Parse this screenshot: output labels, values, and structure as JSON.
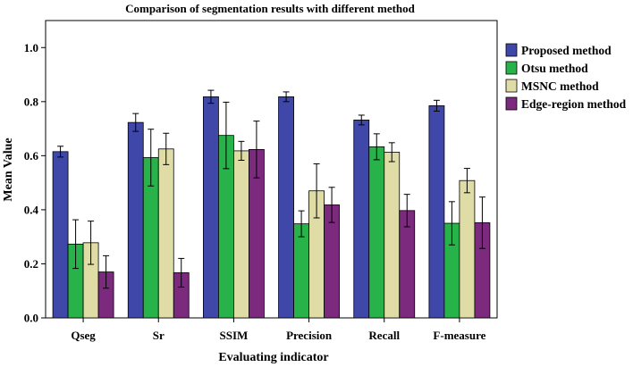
{
  "chart_data": {
    "type": "bar",
    "title": "Comparison of segmentation results with different method",
    "xlabel": "Evaluating indicator",
    "ylabel": "Mean Value",
    "categories": [
      "Qseg",
      "Sr",
      "SSIM",
      "Precision",
      "Recall",
      "F-measure"
    ],
    "ylim": [
      0,
      1.1
    ],
    "yticks": [
      "0.0",
      "0.2",
      "0.4",
      "0.6",
      "0.8",
      "1.0"
    ],
    "ytick_values": [
      0.0,
      0.2,
      0.4,
      0.6,
      0.8,
      1.0
    ],
    "legend_position": "right",
    "error_bars": true,
    "series": [
      {
        "name": "Proposed method",
        "color": "#3f48a8",
        "values": [
          0.615,
          0.723,
          0.818,
          0.818,
          0.732,
          0.785
        ],
        "errors": [
          0.02,
          0.033,
          0.024,
          0.018,
          0.018,
          0.02
        ]
      },
      {
        "name": "Otsu method",
        "color": "#27b24a",
        "values": [
          0.273,
          0.593,
          0.675,
          0.348,
          0.633,
          0.35
        ],
        "errors": [
          0.09,
          0.105,
          0.123,
          0.048,
          0.048,
          0.08
        ]
      },
      {
        "name": "MSNC method",
        "color": "#dfdca5",
        "values": [
          0.278,
          0.625,
          0.618,
          0.47,
          0.613,
          0.508
        ],
        "errors": [
          0.08,
          0.058,
          0.035,
          0.1,
          0.035,
          0.045
        ]
      },
      {
        "name": "Edge-region method",
        "color": "#7b2a7d",
        "values": [
          0.17,
          0.167,
          0.623,
          0.418,
          0.397,
          0.352
        ],
        "errors": [
          0.06,
          0.053,
          0.105,
          0.065,
          0.06,
          0.095
        ]
      }
    ]
  }
}
